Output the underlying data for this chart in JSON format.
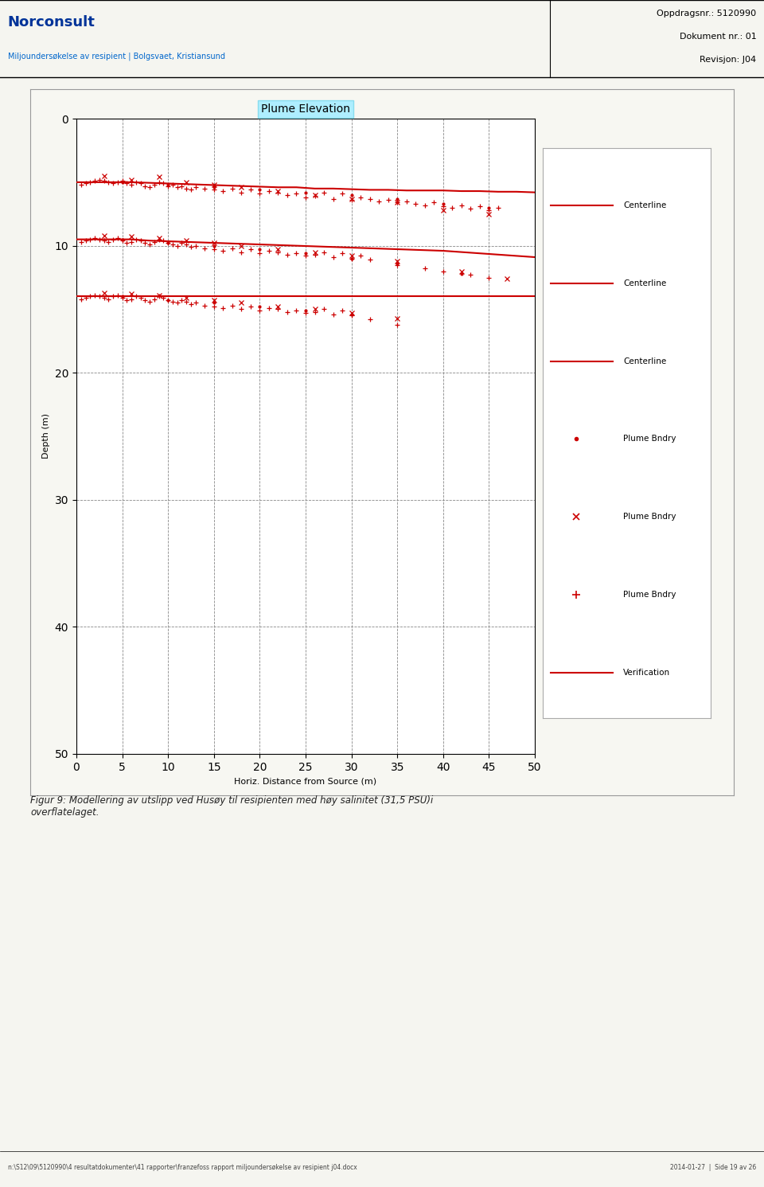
{
  "title": "Plume Elevation",
  "title_bg_color": "#aeeeff",
  "xlabel": "Horiz. Distance from Source (m)",
  "ylabel": "Depth (m)",
  "xlim": [
    0,
    50
  ],
  "ylim": [
    50,
    0
  ],
  "xticks": [
    0,
    5,
    10,
    15,
    20,
    25,
    30,
    35,
    40,
    45,
    50
  ],
  "yticks": [
    0,
    10,
    20,
    30,
    40,
    50
  ],
  "line_color": "#cc0000",
  "page_bg": "#f5f5f0",
  "chart_bg": "#ffffff",
  "centerlines": [
    {
      "x": [
        0,
        2,
        4,
        6,
        8,
        10,
        12,
        14,
        16,
        18,
        20,
        22,
        24,
        26,
        28,
        30,
        32,
        34,
        36,
        38,
        40,
        42,
        44,
        46,
        48,
        50
      ],
      "y": [
        5.0,
        5.0,
        5.0,
        5.0,
        5.05,
        5.1,
        5.15,
        5.2,
        5.25,
        5.3,
        5.35,
        5.4,
        5.4,
        5.5,
        5.5,
        5.55,
        5.6,
        5.6,
        5.65,
        5.65,
        5.65,
        5.7,
        5.7,
        5.75,
        5.75,
        5.8
      ]
    },
    {
      "x": [
        0,
        2,
        4,
        6,
        8,
        10,
        12,
        14,
        16,
        18,
        20,
        22,
        24,
        26,
        28,
        30,
        32,
        34,
        36,
        38,
        40,
        42,
        44,
        46,
        48,
        50
      ],
      "y": [
        9.5,
        9.5,
        9.5,
        9.5,
        9.6,
        9.65,
        9.7,
        9.75,
        9.8,
        9.85,
        9.9,
        9.95,
        10.0,
        10.05,
        10.1,
        10.15,
        10.2,
        10.25,
        10.3,
        10.35,
        10.4,
        10.5,
        10.6,
        10.7,
        10.8,
        10.9
      ]
    },
    {
      "x": [
        0,
        2,
        4,
        6,
        8,
        10,
        12,
        14,
        16,
        18,
        20,
        22,
        24,
        26,
        28,
        30,
        32,
        34,
        36,
        38,
        40,
        42,
        44,
        46,
        48,
        50
      ],
      "y": [
        14.0,
        14.0,
        14.0,
        14.0,
        14.0,
        14.0,
        14.0,
        14.0,
        14.0,
        14.0,
        14.0,
        14.0,
        14.0,
        14.0,
        14.0,
        14.0,
        14.0,
        14.0,
        14.0,
        14.0,
        14.0,
        14.0,
        14.0,
        14.0,
        14.0,
        14.0
      ]
    }
  ],
  "scatter_plus_top_x": [
    0.5,
    1,
    1.5,
    2,
    2.5,
    3,
    3.5,
    4,
    4.5,
    5,
    5.5,
    6,
    6.5,
    7,
    7.5,
    8,
    8.5,
    9,
    9.5,
    10,
    10.5,
    11,
    11.5,
    12,
    12.5,
    13,
    14,
    15,
    16,
    17,
    18,
    19,
    20,
    21,
    22,
    23,
    24,
    25,
    26,
    27,
    28,
    29,
    30,
    31,
    32,
    33,
    34,
    35,
    36,
    37,
    38,
    39,
    40,
    41,
    42,
    43,
    44,
    45,
    46
  ],
  "scatter_plus_top_y": [
    5.2,
    5.1,
    5.0,
    4.9,
    4.8,
    4.9,
    5.0,
    5.1,
    5.0,
    4.9,
    5.1,
    5.2,
    5.0,
    5.1,
    5.3,
    5.4,
    5.2,
    5.0,
    5.1,
    5.3,
    5.2,
    5.4,
    5.3,
    5.5,
    5.6,
    5.4,
    5.5,
    5.6,
    5.7,
    5.5,
    5.8,
    5.6,
    5.9,
    5.7,
    5.8,
    6.0,
    5.9,
    6.2,
    6.1,
    5.8,
    6.3,
    5.9,
    6.4,
    6.2,
    6.3,
    6.5,
    6.4,
    6.6,
    6.5,
    6.7,
    6.8,
    6.6,
    6.9,
    7.0,
    6.8,
    7.1,
    6.9,
    7.2,
    7.0
  ],
  "scatter_plus_mid_x": [
    0.5,
    1,
    1.5,
    2,
    2.5,
    3,
    3.5,
    4,
    4.5,
    5,
    5.5,
    6,
    6.5,
    7,
    7.5,
    8,
    8.5,
    9,
    9.5,
    10,
    10.5,
    11,
    11.5,
    12,
    12.5,
    13,
    14,
    15,
    16,
    17,
    18,
    19,
    20,
    21,
    22,
    23,
    24,
    25,
    26,
    27,
    28,
    29,
    30,
    31,
    32,
    35,
    38,
    40,
    43,
    45
  ],
  "scatter_plus_mid_y": [
    9.7,
    9.6,
    9.5,
    9.4,
    9.5,
    9.6,
    9.7,
    9.5,
    9.4,
    9.6,
    9.8,
    9.7,
    9.5,
    9.6,
    9.8,
    9.9,
    9.7,
    9.5,
    9.6,
    9.8,
    9.9,
    10.0,
    9.8,
    9.9,
    10.1,
    10.0,
    10.2,
    10.3,
    10.4,
    10.2,
    10.5,
    10.3,
    10.6,
    10.4,
    10.5,
    10.7,
    10.6,
    10.8,
    10.7,
    10.5,
    10.9,
    10.6,
    11.0,
    10.8,
    11.1,
    11.5,
    11.8,
    12.0,
    12.3,
    12.5
  ],
  "scatter_plus_bot_x": [
    0.5,
    1,
    1.5,
    2,
    2.5,
    3,
    3.5,
    4,
    4.5,
    5,
    5.5,
    6,
    6.5,
    7,
    7.5,
    8,
    8.5,
    9,
    9.5,
    10,
    10.5,
    11,
    11.5,
    12,
    12.5,
    13,
    14,
    15,
    16,
    17,
    18,
    19,
    20,
    21,
    22,
    23,
    24,
    25,
    26,
    27,
    28,
    29,
    30,
    32,
    35
  ],
  "scatter_plus_bot_y": [
    14.2,
    14.1,
    14.0,
    13.9,
    14.0,
    14.1,
    14.2,
    14.0,
    13.9,
    14.1,
    14.3,
    14.2,
    14.0,
    14.1,
    14.3,
    14.4,
    14.2,
    14.0,
    14.1,
    14.3,
    14.4,
    14.5,
    14.3,
    14.4,
    14.6,
    14.5,
    14.7,
    14.8,
    14.9,
    14.7,
    15.0,
    14.8,
    15.1,
    14.9,
    15.0,
    15.2,
    15.1,
    15.3,
    15.2,
    15.0,
    15.4,
    15.1,
    15.5,
    15.8,
    16.2
  ],
  "scatter_x_top_x": [
    3,
    6,
    9,
    12,
    15,
    18,
    22,
    26,
    30,
    35,
    40,
    45
  ],
  "scatter_x_top_y": [
    4.5,
    4.8,
    4.6,
    5.0,
    5.2,
    5.4,
    5.7,
    6.0,
    6.3,
    6.6,
    7.2,
    7.5
  ],
  "scatter_x_mid_x": [
    3,
    6,
    9,
    12,
    15,
    18,
    22,
    26,
    30,
    35,
    42,
    47
  ],
  "scatter_x_mid_y": [
    9.2,
    9.3,
    9.4,
    9.6,
    9.8,
    10.0,
    10.3,
    10.5,
    10.8,
    11.2,
    12.0,
    12.6
  ],
  "scatter_x_bot_x": [
    3,
    6,
    9,
    12,
    15,
    18,
    22,
    26,
    30,
    35
  ],
  "scatter_x_bot_y": [
    13.7,
    13.8,
    13.9,
    14.1,
    14.3,
    14.5,
    14.8,
    15.0,
    15.3,
    15.7
  ],
  "scatter_dot_top_x": [
    5,
    10,
    15,
    20,
    25,
    30,
    35,
    40,
    45
  ],
  "scatter_dot_top_y": [
    5.0,
    5.2,
    5.4,
    5.6,
    5.8,
    6.0,
    6.3,
    6.7,
    7.0
  ],
  "scatter_dot_mid_x": [
    5,
    10,
    15,
    20,
    25,
    30,
    35,
    42
  ],
  "scatter_dot_mid_y": [
    9.5,
    9.8,
    10.0,
    10.3,
    10.6,
    11.0,
    11.4,
    12.2
  ],
  "scatter_dot_bot_x": [
    5,
    10,
    15,
    20,
    25,
    30
  ],
  "scatter_dot_bot_y": [
    14.0,
    14.3,
    14.5,
    14.8,
    15.1,
    15.4
  ],
  "header_text_left": "Miljoundersøkelse av resipient | Bolgsvaet, Kristiansund",
  "header_text_right1": "Oppdragsnr.: 5120990",
  "header_text_right2": "Dokument nr.: 01",
  "header_text_right3": "Revisjon: J04",
  "caption": "Figur 9: Modellering av utslipp ved Husøy til resipienten med høy salinitet (31,5 PSU)i\noverflatelaget.",
  "footer_left": "n:\\S12\\09\\5120990\\4 resultatdokumenter\\41 rapporter\\franzefoss rapport miljoundersøkelse av resipient j04.docx",
  "footer_right": "2014-01-27  |  Side 19 av 26"
}
